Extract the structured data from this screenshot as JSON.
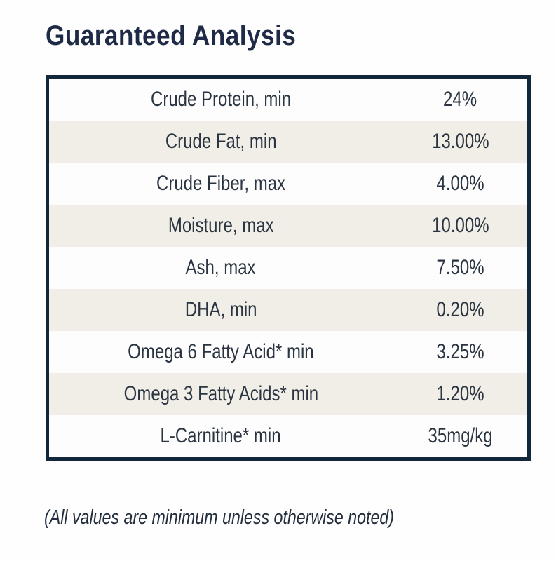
{
  "title": "Guaranteed Analysis",
  "analysis_table": {
    "rows": [
      {
        "label": "Crude Protein, min",
        "value": "24%"
      },
      {
        "label": "Crude Fat, min",
        "value": "13.00%"
      },
      {
        "label": "Crude Fiber, max",
        "value": "4.00%"
      },
      {
        "label": "Moisture, max",
        "value": "10.00%"
      },
      {
        "label": "Ash, max",
        "value": "7.50%"
      },
      {
        "label": "DHA, min",
        "value": "0.20%"
      },
      {
        "label": "Omega 6 Fatty Acid* min",
        "value": "3.25%"
      },
      {
        "label": "Omega 3 Fatty Acids* min",
        "value": "1.20%"
      },
      {
        "label": "L-Carnitine* min",
        "value": "35mg/kg"
      }
    ]
  },
  "footnote": "(All values are minimum unless otherwise noted)",
  "colors": {
    "title_text": "#1f2b46",
    "table_border": "#13273b",
    "row_white": "#fdfdfd",
    "row_beige": "#f0eee6",
    "column_divider": "#c9c9c7",
    "cell_text": "#2a3541",
    "footnote_text": "#222e3e",
    "page_background": "#fefefe"
  }
}
